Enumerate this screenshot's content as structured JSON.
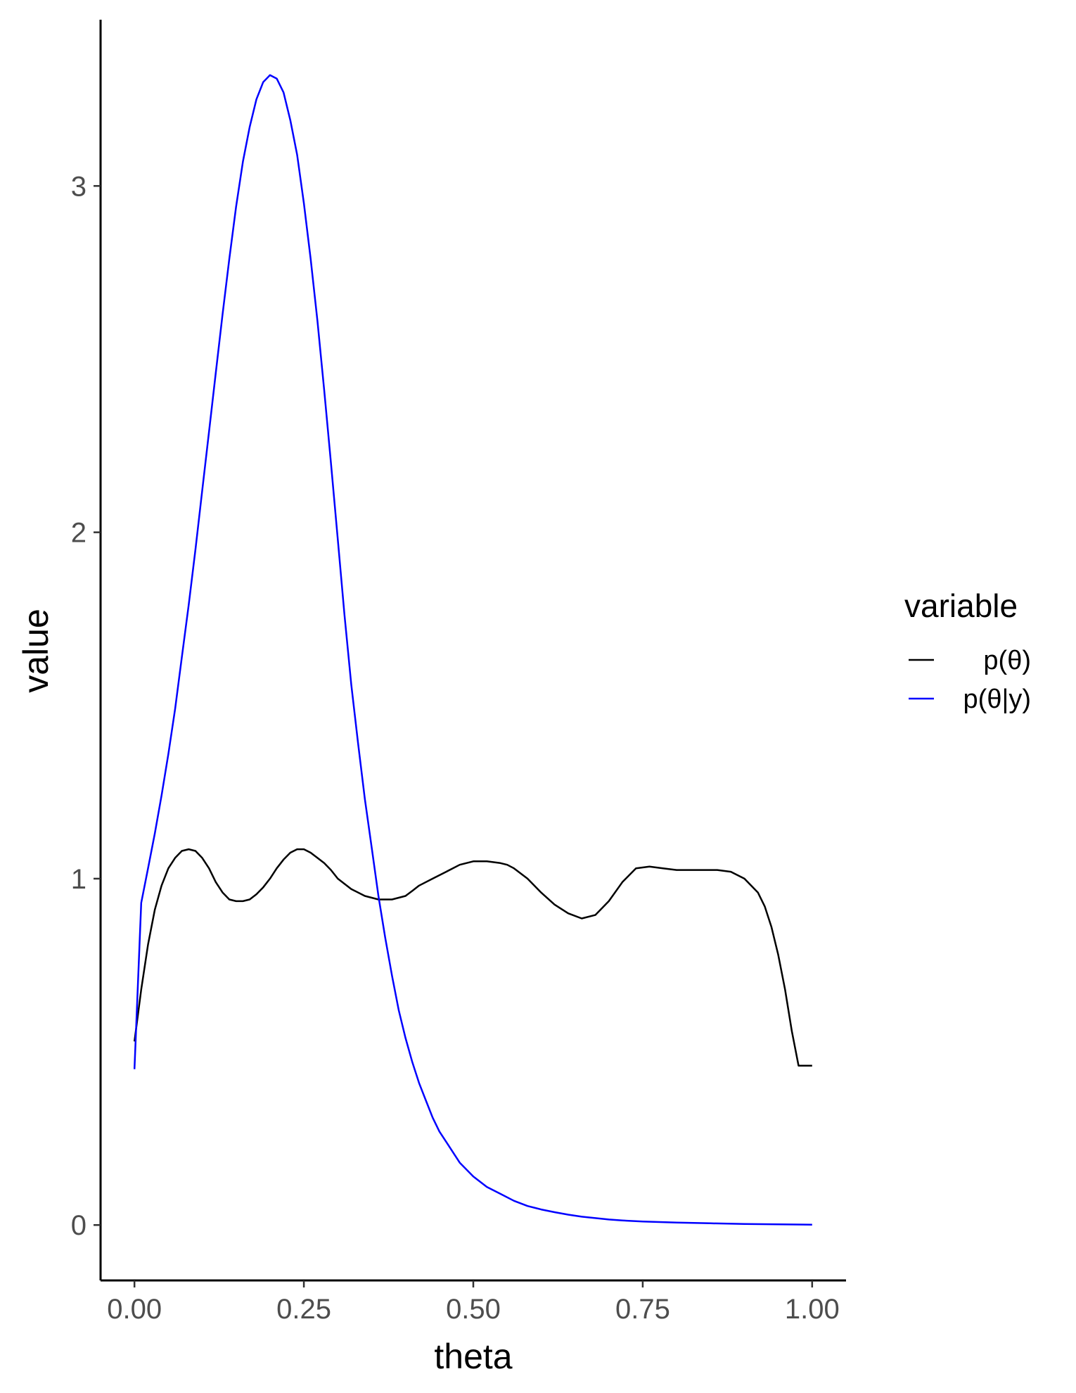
{
  "chart_data": {
    "type": "line",
    "xlabel": "theta",
    "ylabel": "value",
    "xlim": [
      -0.05,
      1.05
    ],
    "ylim": [
      -0.16,
      3.48
    ],
    "x_ticks": [
      0,
      0.25,
      0.5,
      0.75,
      1
    ],
    "x_tick_labels": [
      "0.00",
      "0.25",
      "0.50",
      "0.75",
      "1.00"
    ],
    "y_ticks": [
      0,
      1,
      2,
      3
    ],
    "y_tick_labels": [
      "0",
      "1",
      "2",
      "3"
    ],
    "grid": false,
    "legend": {
      "title": "variable",
      "placement": "right",
      "entries": [
        "p(θ)",
        "p(θ|y)"
      ]
    },
    "series": [
      {
        "name": "p(θ)",
        "color": "#000000",
        "x": [
          0,
          0.01,
          0.02,
          0.03,
          0.04,
          0.05,
          0.06,
          0.07,
          0.08,
          0.09,
          0.1,
          0.11,
          0.12,
          0.13,
          0.14,
          0.15,
          0.16,
          0.17,
          0.18,
          0.19,
          0.2,
          0.21,
          0.22,
          0.23,
          0.24,
          0.25,
          0.26,
          0.27,
          0.28,
          0.29,
          0.3,
          0.32,
          0.34,
          0.36,
          0.38,
          0.4,
          0.41,
          0.42,
          0.44,
          0.46,
          0.48,
          0.5,
          0.52,
          0.54,
          0.55,
          0.56,
          0.58,
          0.6,
          0.62,
          0.64,
          0.66,
          0.68,
          0.7,
          0.72,
          0.74,
          0.76,
          0.78,
          0.8,
          0.82,
          0.84,
          0.86,
          0.88,
          0.9,
          0.92,
          0.93,
          0.94,
          0.95,
          0.96,
          0.97,
          0.98,
          0.99,
          1.0
        ],
        "y": [
          0.53,
          0.68,
          0.81,
          0.91,
          0.98,
          1.03,
          1.06,
          1.08,
          1.085,
          1.08,
          1.06,
          1.03,
          0.99,
          0.96,
          0.94,
          0.935,
          0.935,
          0.94,
          0.955,
          0.975,
          1.0,
          1.03,
          1.055,
          1.075,
          1.085,
          1.085,
          1.075,
          1.06,
          1.045,
          1.025,
          1.0,
          0.97,
          0.95,
          0.94,
          0.94,
          0.95,
          0.965,
          0.98,
          1.0,
          1.02,
          1.04,
          1.05,
          1.05,
          1.045,
          1.04,
          1.03,
          1.0,
          0.96,
          0.925,
          0.9,
          0.885,
          0.895,
          0.935,
          0.99,
          1.03,
          1.035,
          1.03,
          1.025,
          1.025,
          1.025,
          1.025,
          1.02,
          1.0,
          0.96,
          0.92,
          0.86,
          0.78,
          0.68,
          0.56,
          0.46,
          0.46,
          0.46
        ]
      },
      {
        "name": "p(θ|y)",
        "color": "#0000ff",
        "x": [
          0,
          0.01,
          0.02,
          0.03,
          0.04,
          0.05,
          0.06,
          0.07,
          0.08,
          0.09,
          0.1,
          0.11,
          0.12,
          0.13,
          0.14,
          0.15,
          0.16,
          0.17,
          0.18,
          0.19,
          0.2,
          0.21,
          0.22,
          0.23,
          0.24,
          0.25,
          0.26,
          0.27,
          0.28,
          0.29,
          0.3,
          0.31,
          0.32,
          0.33,
          0.34,
          0.35,
          0.36,
          0.37,
          0.38,
          0.39,
          0.4,
          0.41,
          0.42,
          0.43,
          0.44,
          0.45,
          0.46,
          0.47,
          0.48,
          0.49,
          0.5,
          0.52,
          0.54,
          0.56,
          0.58,
          0.6,
          0.62,
          0.64,
          0.66,
          0.68,
          0.7,
          0.72,
          0.75,
          0.8,
          0.85,
          0.9,
          0.95,
          1.0
        ],
        "y": [
          0.45,
          0.93,
          1.03,
          1.13,
          1.24,
          1.36,
          1.49,
          1.64,
          1.79,
          1.95,
          2.12,
          2.29,
          2.46,
          2.63,
          2.79,
          2.94,
          3.07,
          3.17,
          3.25,
          3.3,
          3.32,
          3.31,
          3.27,
          3.19,
          3.09,
          2.95,
          2.79,
          2.61,
          2.41,
          2.2,
          1.98,
          1.76,
          1.56,
          1.39,
          1.23,
          1.09,
          0.95,
          0.83,
          0.72,
          0.62,
          0.54,
          0.47,
          0.41,
          0.36,
          0.31,
          0.27,
          0.24,
          0.21,
          0.18,
          0.16,
          0.14,
          0.11,
          0.09,
          0.07,
          0.055,
          0.045,
          0.037,
          0.03,
          0.024,
          0.02,
          0.016,
          0.013,
          0.01,
          0.007,
          0.005,
          0.003,
          0.002,
          0.001
        ]
      }
    ]
  }
}
